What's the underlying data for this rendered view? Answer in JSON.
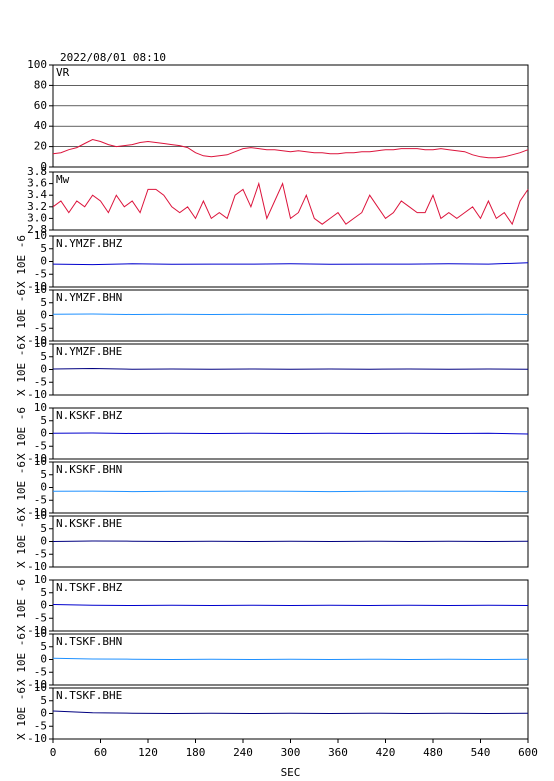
{
  "chart_data": [
    {
      "type": "line",
      "title": "2022/08/01 08:10",
      "grid": true,
      "x": [
        0,
        10,
        20,
        30,
        40,
        50,
        60,
        70,
        80,
        90,
        100,
        110,
        120,
        130,
        140,
        150,
        160,
        170,
        180,
        190,
        200,
        210,
        220,
        230,
        240,
        250,
        260,
        270,
        280,
        290,
        300,
        310,
        320,
        330,
        340,
        350,
        360,
        370,
        380,
        390,
        400,
        410,
        420,
        430,
        440,
        450,
        460,
        470,
        480,
        490,
        500,
        510,
        520,
        530,
        540,
        550,
        560,
        570,
        580,
        590,
        600
      ],
      "series": [
        {
          "name": "VR",
          "color": "#dc143c",
          "values": [
            13,
            14,
            17,
            19,
            23,
            27,
            25,
            22,
            20,
            21,
            22,
            24,
            25,
            24,
            23,
            22,
            21,
            19,
            14,
            11,
            10,
            11,
            12,
            15,
            18,
            19,
            18,
            17,
            17,
            16,
            15,
            16,
            15,
            14,
            14,
            13,
            13,
            14,
            14,
            15,
            15,
            16,
            17,
            17,
            18,
            18,
            18,
            17,
            17,
            18,
            17,
            16,
            15,
            12,
            10,
            9,
            9,
            10,
            12,
            14,
            17
          ]
        }
      ],
      "xlim": [
        0,
        600
      ],
      "ylim": [
        0,
        100
      ],
      "yticks": [
        0,
        20,
        40,
        60,
        80,
        100
      ]
    },
    {
      "type": "line",
      "x": [
        0,
        10,
        20,
        30,
        40,
        50,
        60,
        70,
        80,
        90,
        100,
        110,
        120,
        130,
        140,
        150,
        160,
        170,
        180,
        190,
        200,
        210,
        220,
        230,
        240,
        250,
        260,
        270,
        280,
        290,
        300,
        310,
        320,
        330,
        340,
        350,
        360,
        370,
        380,
        390,
        400,
        410,
        420,
        430,
        440,
        450,
        460,
        470,
        480,
        490,
        500,
        510,
        520,
        530,
        540,
        550,
        560,
        570,
        580,
        590,
        600
      ],
      "series": [
        {
          "name": "Mw",
          "color": "#dc143c",
          "values": [
            3.2,
            3.3,
            3.1,
            3.3,
            3.2,
            3.4,
            3.3,
            3.1,
            3.4,
            3.2,
            3.3,
            3.1,
            3.5,
            3.5,
            3.4,
            3.2,
            3.1,
            3.2,
            3.0,
            3.3,
            3.0,
            3.1,
            3.0,
            3.4,
            3.5,
            3.2,
            3.6,
            3.0,
            3.3,
            3.6,
            3.0,
            3.1,
            3.4,
            3.0,
            2.9,
            3.0,
            3.1,
            2.9,
            3.0,
            3.1,
            3.4,
            3.2,
            3.0,
            3.1,
            3.3,
            3.2,
            3.1,
            3.1,
            3.4,
            3.0,
            3.1,
            3.0,
            3.1,
            3.2,
            3.0,
            3.3,
            3.0,
            3.1,
            2.9,
            3.3,
            3.5
          ]
        }
      ],
      "xlim": [
        0,
        600
      ],
      "ylim": [
        2.8,
        3.8
      ],
      "yticks": [
        2.8,
        {
          "value": 3,
          "label": "3.0"
        },
        3.2,
        3.4,
        3.6,
        3.8
      ]
    },
    {
      "type": "line",
      "ylabel": "X 10E -6",
      "x": [
        0,
        50,
        100,
        150,
        200,
        250,
        300,
        350,
        400,
        450,
        500,
        550,
        600
      ],
      "series": [
        {
          "name": "N.YMZF.BHZ",
          "color": "#0000cd",
          "values": [
            -1,
            -1.2,
            -0.9,
            -1.1,
            -1,
            -1,
            -0.9,
            -1.1,
            -1,
            -1,
            -0.9,
            -1,
            -0.5
          ]
        }
      ],
      "xlim": [
        0,
        600
      ],
      "ylim": [
        -10,
        10
      ],
      "yticks": [
        -10,
        -5,
        0,
        5,
        10
      ]
    },
    {
      "type": "line",
      "ylabel": "X 10E -6",
      "x": [
        0,
        50,
        100,
        150,
        200,
        250,
        300,
        350,
        400,
        450,
        500,
        550,
        600
      ],
      "series": [
        {
          "name": "N.YMZF.BHN",
          "color": "#1e90ff",
          "values": [
            0.5,
            0.6,
            0.4,
            0.5,
            0.4,
            0.5,
            0.4,
            0.5,
            0.4,
            0.5,
            0.4,
            0.5,
            0.4
          ]
        }
      ],
      "xlim": [
        0,
        600
      ],
      "ylim": [
        -10,
        10
      ],
      "yticks": [
        -10,
        -5,
        0,
        5,
        10
      ]
    },
    {
      "type": "line",
      "ylabel": "X 10E -6",
      "x": [
        0,
        50,
        100,
        150,
        200,
        250,
        300,
        350,
        400,
        450,
        500,
        550,
        600
      ],
      "series": [
        {
          "name": "N.YMZF.BHE",
          "color": "#000080",
          "values": [
            0.2,
            0.4,
            0.1,
            0.2,
            0.1,
            0.2,
            0.1,
            0.2,
            0.1,
            0.2,
            0.1,
            0.2,
            0.1
          ]
        }
      ],
      "xlim": [
        0,
        600
      ],
      "ylim": [
        -10,
        10
      ],
      "yticks": [
        -10,
        -5,
        0,
        5,
        10
      ]
    },
    {
      "type": "line",
      "ylabel": "X 10E -6",
      "x": [
        0,
        50,
        100,
        150,
        200,
        250,
        300,
        350,
        400,
        450,
        500,
        550,
        600
      ],
      "series": [
        {
          "name": "N.KSKF.BHZ",
          "color": "#0000cd",
          "values": [
            0.1,
            0.2,
            0,
            0.1,
            0,
            0.1,
            0,
            0.1,
            0,
            0.1,
            0,
            0.1,
            -0.2
          ]
        }
      ],
      "xlim": [
        0,
        600
      ],
      "ylim": [
        -10,
        10
      ],
      "yticks": [
        -10,
        -5,
        0,
        5,
        10
      ]
    },
    {
      "type": "line",
      "ylabel": "X 10E -6",
      "x": [
        0,
        50,
        100,
        150,
        200,
        250,
        300,
        350,
        400,
        450,
        500,
        550,
        600
      ],
      "series": [
        {
          "name": "N.KSKF.BHN",
          "color": "#1e90ff",
          "values": [
            -1.5,
            -1.4,
            -1.6,
            -1.5,
            -1.5,
            -1.4,
            -1.5,
            -1.6,
            -1.5,
            -1.4,
            -1.5,
            -1.5,
            -1.6
          ]
        }
      ],
      "xlim": [
        0,
        600
      ],
      "ylim": [
        -10,
        10
      ],
      "yticks": [
        -10,
        -5,
        0,
        5,
        10
      ]
    },
    {
      "type": "line",
      "ylabel": "X 10E -6",
      "x": [
        0,
        50,
        100,
        150,
        200,
        250,
        300,
        350,
        400,
        450,
        500,
        550,
        600
      ],
      "series": [
        {
          "name": "N.KSKF.BHE",
          "color": "#000080",
          "values": [
            0,
            0.2,
            0.1,
            0,
            0.1,
            0,
            0.1,
            0,
            0.1,
            0,
            0.1,
            0,
            0.1
          ]
        }
      ],
      "xlim": [
        0,
        600
      ],
      "ylim": [
        -10,
        10
      ],
      "yticks": [
        -10,
        -5,
        0,
        5,
        10
      ]
    },
    {
      "type": "line",
      "ylabel": "X 10E -6",
      "x": [
        0,
        50,
        100,
        150,
        200,
        250,
        300,
        350,
        400,
        450,
        500,
        550,
        600
      ],
      "series": [
        {
          "name": "N.TSKF.BHZ",
          "color": "#0000cd",
          "values": [
            0.4,
            0.1,
            0,
            0.1,
            0,
            0.1,
            0,
            0.1,
            0,
            0.1,
            0,
            0.1,
            0
          ]
        }
      ],
      "xlim": [
        0,
        600
      ],
      "ylim": [
        -10,
        10
      ],
      "yticks": [
        -10,
        -5,
        0,
        5,
        10
      ]
    },
    {
      "type": "line",
      "ylabel": "X 10E -6",
      "x": [
        0,
        50,
        100,
        150,
        200,
        250,
        300,
        350,
        400,
        450,
        500,
        550,
        600
      ],
      "series": [
        {
          "name": "N.TSKF.BHN",
          "color": "#1e90ff",
          "values": [
            0.5,
            0.2,
            0.1,
            0,
            0.1,
            0,
            0.1,
            0,
            0.1,
            0,
            0.1,
            0,
            0.1
          ]
        }
      ],
      "xlim": [
        0,
        600
      ],
      "ylim": [
        -10,
        10
      ],
      "yticks": [
        -10,
        -5,
        0,
        5,
        10
      ]
    },
    {
      "type": "line",
      "ylabel": "X 10E -6",
      "xlabel": "SEC",
      "x": [
        0,
        50,
        100,
        150,
        200,
        250,
        300,
        350,
        400,
        450,
        500,
        550,
        600
      ],
      "series": [
        {
          "name": "N.TSKF.BHE",
          "color": "#000080",
          "values": [
            1,
            0.3,
            0.1,
            0,
            0.1,
            0,
            0.1,
            0,
            0.1,
            0,
            0.1,
            0,
            0.1
          ]
        }
      ],
      "xlim": [
        0,
        600
      ],
      "ylim": [
        -10,
        10
      ],
      "xticks": [
        0,
        60,
        120,
        180,
        240,
        300,
        360,
        420,
        480,
        540,
        600
      ],
      "yticks": [
        -10,
        -5,
        0,
        5,
        10
      ]
    }
  ]
}
